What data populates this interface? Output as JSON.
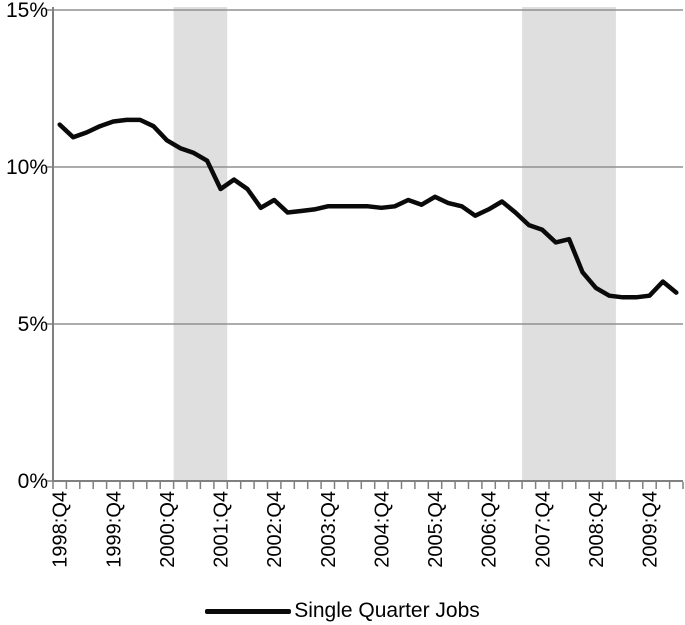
{
  "chart_data": {
    "type": "line",
    "title": "",
    "xlabel": "",
    "ylabel": "",
    "categories": [
      "1998:Q4",
      "1999:Q1",
      "1999:Q2",
      "1999:Q3",
      "1999:Q4",
      "2000:Q1",
      "2000:Q2",
      "2000:Q3",
      "2000:Q4",
      "2001:Q1",
      "2001:Q2",
      "2001:Q3",
      "2001:Q4",
      "2002:Q1",
      "2002:Q2",
      "2002:Q3",
      "2002:Q4",
      "2003:Q1",
      "2003:Q2",
      "2003:Q3",
      "2003:Q4",
      "2004:Q1",
      "2004:Q2",
      "2004:Q3",
      "2004:Q4",
      "2005:Q1",
      "2005:Q2",
      "2005:Q3",
      "2005:Q4",
      "2006:Q1",
      "2006:Q2",
      "2006:Q3",
      "2006:Q4",
      "2007:Q1",
      "2007:Q2",
      "2007:Q3",
      "2007:Q4",
      "2008:Q1",
      "2008:Q2",
      "2008:Q3",
      "2008:Q4",
      "2009:Q1",
      "2009:Q2",
      "2009:Q3",
      "2009:Q4",
      "2010:Q1",
      "2010:Q2"
    ],
    "series": [
      {
        "name": "Single Quarter Jobs",
        "values": [
          11.35,
          10.95,
          11.1,
          11.3,
          11.45,
          11.5,
          11.5,
          11.3,
          10.85,
          10.6,
          10.45,
          10.2,
          9.3,
          9.6,
          9.3,
          8.7,
          8.95,
          8.55,
          8.6,
          8.65,
          8.75,
          8.75,
          8.75,
          8.75,
          8.7,
          8.75,
          8.95,
          8.8,
          9.05,
          8.85,
          8.75,
          8.45,
          8.65,
          8.9,
          8.55,
          8.15,
          8.0,
          7.6,
          7.7,
          6.65,
          6.15,
          5.9,
          5.85,
          5.85,
          5.9,
          6.35,
          6.0
        ]
      }
    ],
    "y_ticks": [
      {
        "value": 15,
        "label": "15%"
      },
      {
        "value": 10,
        "label": "10%"
      },
      {
        "value": 5,
        "label": "5%"
      },
      {
        "value": 0,
        "label": "0%"
      }
    ],
    "ylim": [
      0,
      15
    ],
    "x_label_every": 4,
    "x_labels_shown": [
      "1998:Q4",
      "1999:Q4",
      "2000:Q4",
      "2001:Q4",
      "2002:Q4",
      "2003:Q4",
      "2004:Q4",
      "2005:Q4",
      "2006:Q4",
      "2007:Q4",
      "2008:Q4",
      "2009:Q4"
    ],
    "grid": "horizontal",
    "legend_position": "bottom-center",
    "recession_bands": [
      {
        "from": "2001:Q1",
        "to": "2001:Q4"
      },
      {
        "from": "2007:Q3",
        "to": "2009:Q1"
      }
    ],
    "colors": {
      "line": "#0a0a0a",
      "band": "#dfdfdf",
      "grid": "#909090",
      "axis": "#808080",
      "text": "#000000"
    }
  },
  "legend": {
    "label": "Single Quarter Jobs"
  }
}
